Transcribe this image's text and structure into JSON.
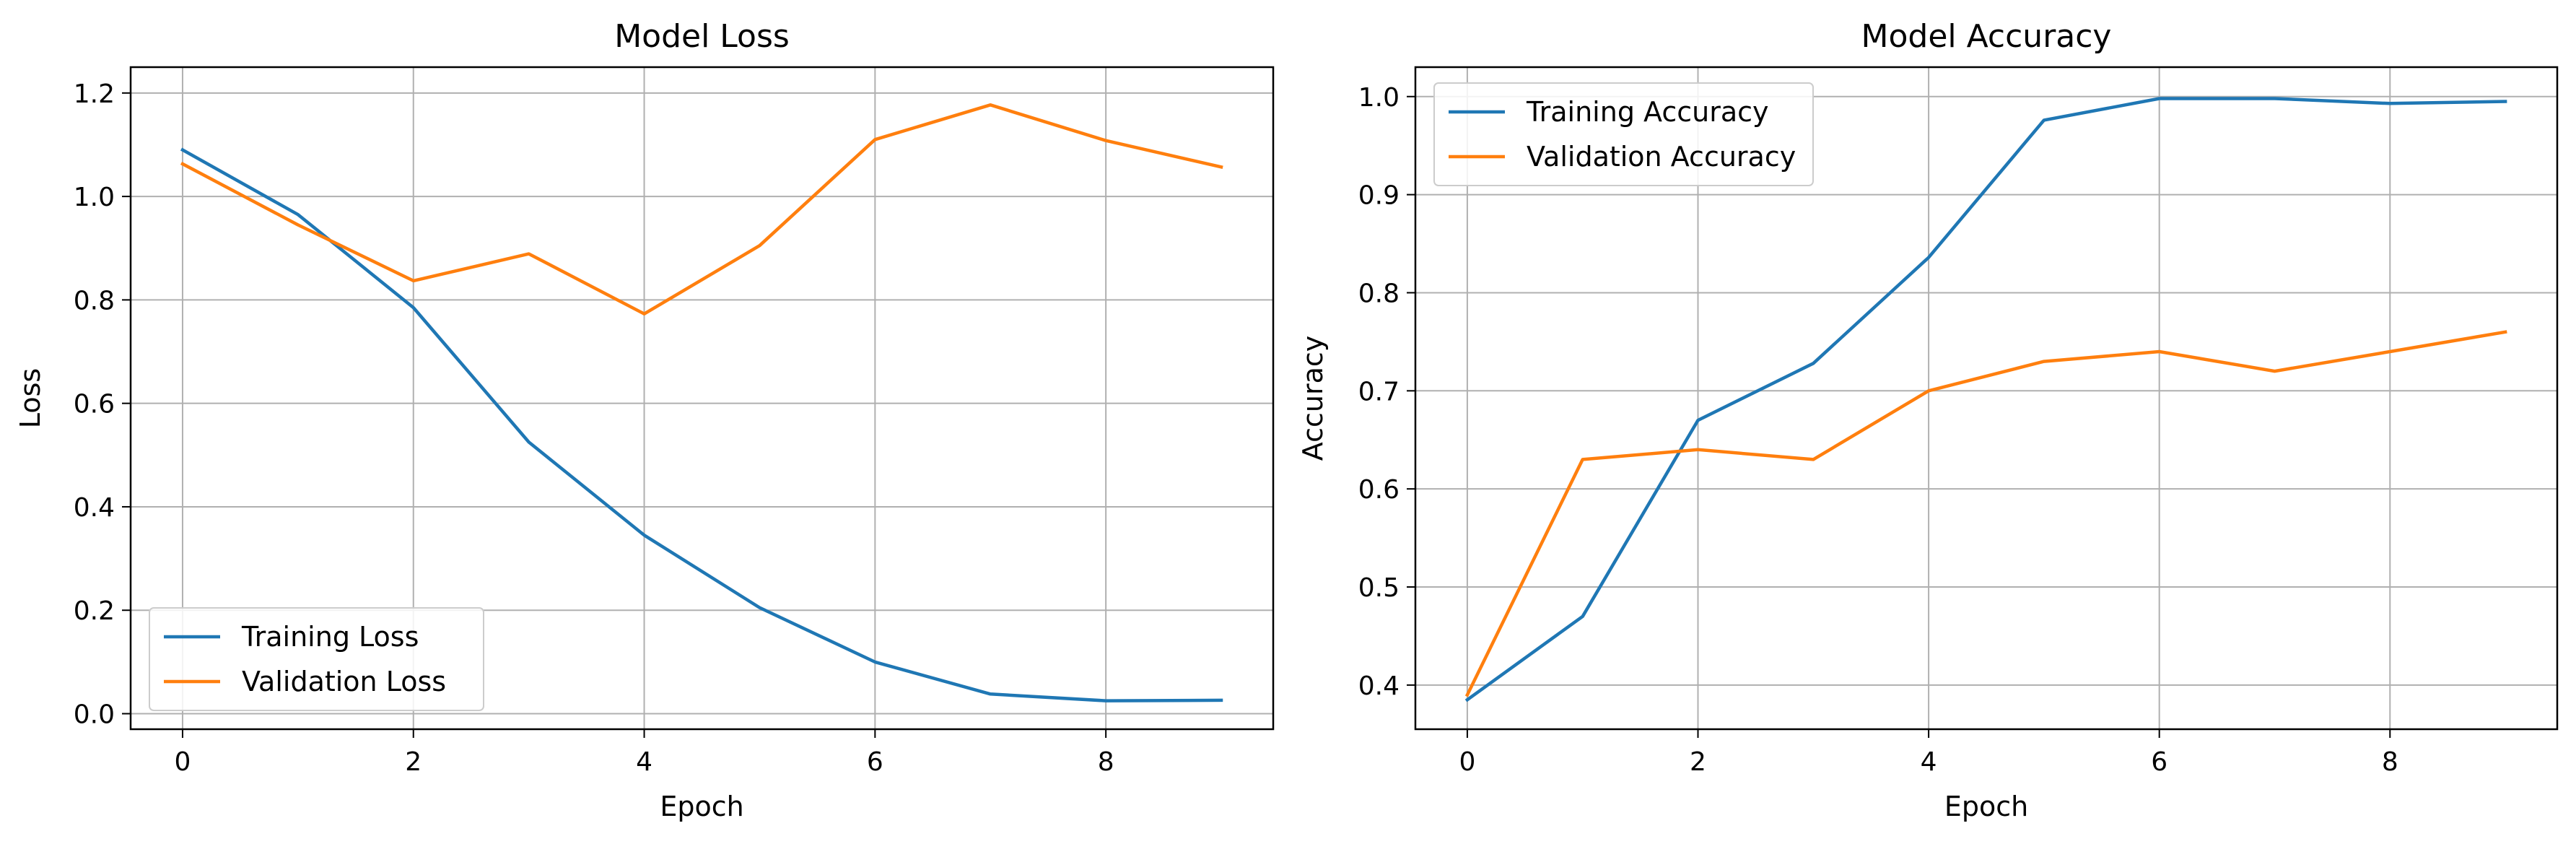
{
  "chart_data": [
    {
      "type": "line",
      "title": "Model Loss",
      "xlabel": "Epoch",
      "ylabel": "Loss",
      "xlim": [
        -0.45,
        9.45
      ],
      "ylim": [
        -0.03,
        1.25
      ],
      "xticks": [
        0,
        2,
        4,
        6,
        8
      ],
      "xtick_labels": [
        "0",
        "2",
        "4",
        "6",
        "8"
      ],
      "yticks": [
        0.0,
        0.2,
        0.4,
        0.6,
        0.8,
        1.0,
        1.2
      ],
      "ytick_labels": [
        "0.0",
        "0.2",
        "0.4",
        "0.6",
        "0.8",
        "1.0",
        "1.2"
      ],
      "grid": true,
      "legend_position": "lower-left",
      "x": [
        0,
        1,
        2,
        3,
        4,
        5,
        6,
        7,
        8,
        9
      ],
      "series": [
        {
          "name": "Training Loss",
          "color": "#1f77b4",
          "values": [
            1.09,
            0.965,
            0.785,
            0.525,
            0.345,
            0.205,
            0.1,
            0.038,
            0.025,
            0.026
          ]
        },
        {
          "name": "Validation Loss",
          "color": "#ff7f0e",
          "values": [
            1.063,
            0.945,
            0.837,
            0.889,
            0.773,
            0.905,
            1.11,
            1.177,
            1.108,
            1.057
          ]
        }
      ]
    },
    {
      "type": "line",
      "title": "Model Accuracy",
      "xlabel": "Epoch",
      "ylabel": "Accuracy",
      "xlim": [
        -0.45,
        9.45
      ],
      "ylim": [
        0.355,
        1.03
      ],
      "xticks": [
        0,
        2,
        4,
        6,
        8
      ],
      "xtick_labels": [
        "0",
        "2",
        "4",
        "6",
        "8"
      ],
      "yticks": [
        0.4,
        0.5,
        0.6,
        0.7,
        0.8,
        0.9,
        1.0
      ],
      "ytick_labels": [
        "0.4",
        "0.5",
        "0.6",
        "0.7",
        "0.8",
        "0.9",
        "1.0"
      ],
      "grid": true,
      "legend_position": "upper-left",
      "x": [
        0,
        1,
        2,
        3,
        4,
        5,
        6,
        7,
        8,
        9
      ],
      "series": [
        {
          "name": "Training Accuracy",
          "color": "#1f77b4",
          "values": [
            0.385,
            0.47,
            0.67,
            0.728,
            0.836,
            0.976,
            0.998,
            0.998,
            0.993,
            0.995
          ]
        },
        {
          "name": "Validation Accuracy",
          "color": "#ff7f0e",
          "values": [
            0.39,
            0.63,
            0.64,
            0.63,
            0.7,
            0.73,
            0.74,
            0.72,
            0.74,
            0.76
          ]
        }
      ]
    }
  ]
}
